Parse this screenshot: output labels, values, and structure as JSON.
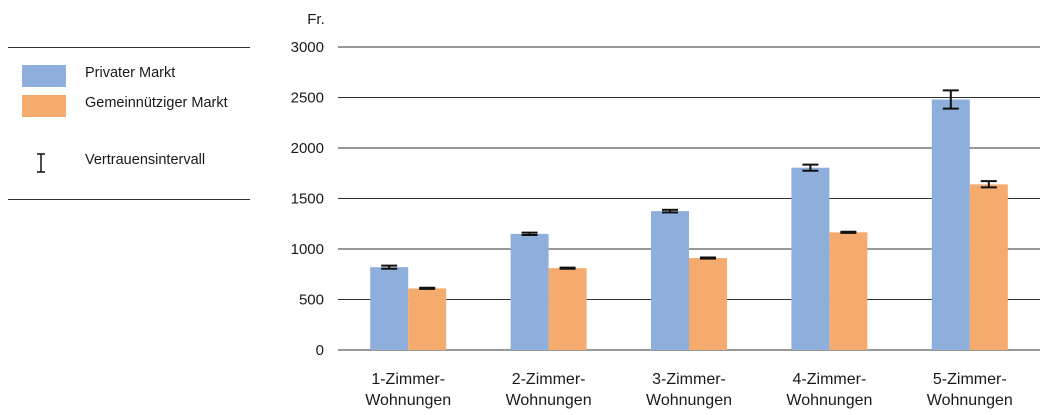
{
  "chart_data": {
    "type": "bar",
    "y_unit": "Fr.",
    "categories": [
      "1-Zimmer-\nWohnungen",
      "2-Zimmer-\nWohnungen",
      "3-Zimmer-\nWohnungen",
      "4-Zimmer-\nWohnungen",
      "5-Zimmer-\nWohnungen"
    ],
    "series": [
      {
        "name": "Privater Markt",
        "color": "#8eaedb",
        "values": [
          820,
          1150,
          1375,
          1805,
          2480
        ],
        "ci_low": [
          805,
          1138,
          1362,
          1775,
          2390
        ],
        "ci_high": [
          835,
          1162,
          1388,
          1835,
          2570
        ]
      },
      {
        "name": "Gemeinnütziger Markt",
        "color": "#f5ab6e",
        "values": [
          610,
          810,
          910,
          1165,
          1640
        ],
        "ci_low": [
          605,
          804,
          905,
          1160,
          1610
        ],
        "ci_high": [
          616,
          816,
          916,
          1171,
          1672
        ]
      }
    ],
    "ylim": [
      0,
      3000
    ],
    "yticks": [
      0,
      500,
      1000,
      1500,
      2000,
      2500,
      3000
    ],
    "grid": true,
    "legend_position": "left"
  },
  "legend": {
    "items": [
      {
        "label": "Privater Markt",
        "color": "#8eaedb"
      },
      {
        "label": "Gemeinnütziger Markt",
        "color": "#f5ab6e"
      }
    ],
    "ci_label": "Vertrauensintervall"
  }
}
